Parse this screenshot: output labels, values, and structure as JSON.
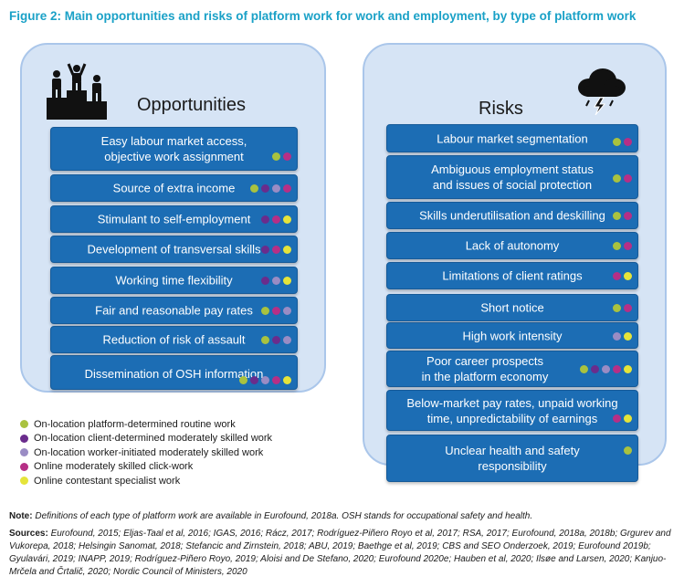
{
  "title": "Figure 2: Main opportunities and risks of platform work for work and employment, by type of platform work",
  "colors": {
    "routine": "#a9c23f",
    "client": "#6a2c8c",
    "worker": "#9a8cc4",
    "click": "#b62f86",
    "contestant": "#e5e43a",
    "title": "#1aa1c7",
    "panel": "#d6e4f5",
    "box": "#1c6db4"
  },
  "opportunities": {
    "heading": "Opportunities",
    "icon": "podium-icon",
    "items": [
      {
        "label": "Easy labour market access,\nobjective work assignment",
        "dots": [
          "routine",
          "click"
        ]
      },
      {
        "label": "Source of extra income",
        "dots": [
          "routine",
          "client",
          "worker",
          "click"
        ]
      },
      {
        "label": "Stimulant to self-employment",
        "dots": [
          "client",
          "click",
          "contestant"
        ]
      },
      {
        "label": "Development of transversal skills",
        "dots": [
          "client",
          "click",
          "contestant"
        ]
      },
      {
        "label": "Working time flexibility",
        "dots": [
          "client",
          "worker",
          "contestant"
        ]
      },
      {
        "label": "Fair and reasonable pay rates",
        "dots": [
          "routine",
          "click",
          "worker"
        ]
      },
      {
        "label": "Reduction of risk of assault",
        "dots": [
          "routine",
          "client",
          "worker"
        ]
      },
      {
        "label": "Dissemination of OSH information",
        "dots": [
          "routine",
          "client",
          "worker",
          "click",
          "contestant"
        ]
      }
    ]
  },
  "risks": {
    "heading": "Risks",
    "icon": "storm-cloud-icon",
    "items": [
      {
        "label": "Labour  market segmentation",
        "dots": [
          "routine",
          "click"
        ]
      },
      {
        "label": "Ambiguous employment status\nand issues of social protection",
        "dots": [
          "routine",
          "click"
        ]
      },
      {
        "label": "Skills underutilisation and deskilling",
        "dots": [
          "routine",
          "click"
        ]
      },
      {
        "label": "Lack of autonomy",
        "dots": [
          "routine",
          "click"
        ]
      },
      {
        "label": "Limitations of client ratings",
        "dots": [
          "click",
          "contestant"
        ]
      },
      {
        "label": "Short notice",
        "dots": [
          "routine",
          "click"
        ]
      },
      {
        "label": "High work intensity",
        "dots": [
          "worker",
          "contestant"
        ]
      },
      {
        "label": "Poor career prospects\nin the platform economy",
        "dots": [
          "routine",
          "client",
          "worker",
          "click",
          "contestant"
        ]
      },
      {
        "label": "Below-market pay rates, unpaid working\ntime, unpredictability of earnings",
        "dots": [
          "click",
          "contestant"
        ]
      },
      {
        "label": "Unclear health and safety\nresponsibility",
        "dots": [
          "routine"
        ]
      }
    ]
  },
  "legend": [
    {
      "key": "routine",
      "label": "On-location platform-determined routine work"
    },
    {
      "key": "client",
      "label": "On-location client-determined moderately skilled work"
    },
    {
      "key": "worker",
      "label": "On-location worker-initiated moderately skilled work"
    },
    {
      "key": "click",
      "label": "Online moderately skilled click-work"
    },
    {
      "key": "contestant",
      "label": "Online contestant specialist work"
    }
  ],
  "note": {
    "label": "Note:",
    "text": "Definitions of each type of platform work are available in Eurofound, 2018a. OSH stands for occupational safety and health."
  },
  "sources": {
    "label": "Sources:",
    "text": "Eurofound, 2015; Eljas-Taal et al, 2016; IGAS, 2016; Rácz, 2017; Rodríguez-Piñero Royo et al, 2017; RSA, 2017; Eurofound, 2018a, 2018b; Grgurev and Vukorepa, 2018; Helsingin Sanomat, 2018; Stefancic and Zirnstein, 2018; ABU, 2019; Baethge et al, 2019; CBS and SEO Onderzoek, 2019; Eurofound 2019b; Gyulavári, 2019; INAPP, 2019; Rodríguez-Piñero Royo, 2019; Aloisi and De Stefano, 2020; Eurofound 2020e; Hauben et al, 2020; Ilsøe and Larsen, 2020; Kanjuo-Mrčela and Črtalič, 2020; Nordic Council of Ministers, 2020"
  }
}
